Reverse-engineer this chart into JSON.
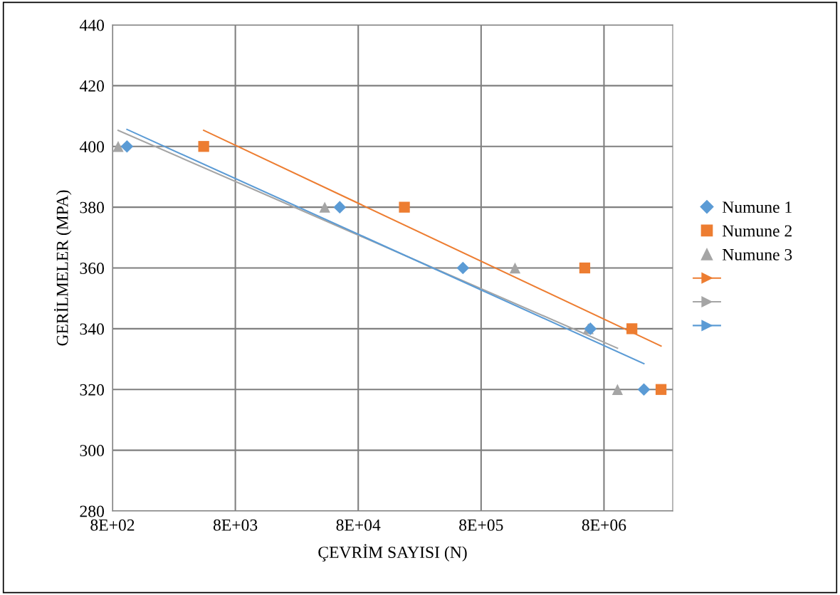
{
  "chart_data": {
    "type": "scatter",
    "xlabel": "ÇEVRİM SAYISI (N)",
    "ylabel": "GERİLMELER (MPA)",
    "log": "x",
    "grid": true,
    "legend": "right",
    "xlim": [
      800,
      29000000
    ],
    "xticks": [
      {
        "value": 800,
        "label": "8E+02"
      },
      {
        "value": 8000,
        "label": "8E+03"
      },
      {
        "value": 80000,
        "label": "8E+04"
      },
      {
        "value": 800000,
        "label": "8E+05"
      },
      {
        "value": 8000000,
        "label": "8E+06"
      }
    ],
    "ylim": [
      280,
      440
    ],
    "yticks": [
      280,
      300,
      320,
      340,
      360,
      380,
      400,
      420,
      440
    ],
    "series": [
      {
        "name": "Numune 1",
        "color": "#5b9bd5",
        "marker": "diamond",
        "x": [
          1050,
          56600,
          569000,
          6200000,
          16900000
        ],
        "values": [
          400,
          380,
          360,
          340,
          320
        ]
      },
      {
        "name": "Numune 2",
        "color": "#ed7d31",
        "marker": "square",
        "x": [
          4420,
          190000,
          5580000,
          13500000,
          23300000
        ],
        "values": [
          400,
          380,
          360,
          340,
          320
        ]
      },
      {
        "name": "Numune 3",
        "color": "#a5a5a5",
        "marker": "triangle",
        "x": [
          890,
          42700,
          1510000,
          5960000,
          10300000
        ],
        "values": [
          400,
          380,
          360,
          340,
          320
        ]
      },
      {
        "type": "line",
        "color": "#ed7d31",
        "marker": "none",
        "line_style": "solid",
        "x": [
          4420,
          23300000
        ],
        "values": [
          405.3,
          334.3
        ]
      },
      {
        "type": "line",
        "color": "#a5a5a5",
        "marker": "none",
        "line_style": "solid",
        "x": [
          890,
          10300000
        ],
        "values": [
          405.3,
          333.6
        ]
      },
      {
        "type": "line",
        "color": "#5b9bd5",
        "marker": "none",
        "line_style": "solid",
        "x": [
          1050,
          16900000
        ],
        "values": [
          405.6,
          328.5
        ]
      }
    ]
  }
}
